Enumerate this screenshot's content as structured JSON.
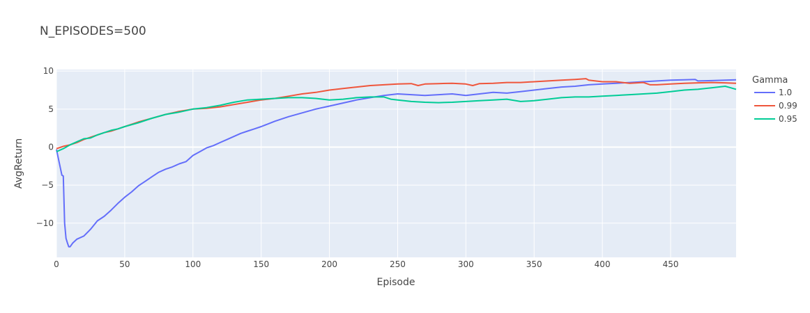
{
  "chart_data": {
    "type": "line",
    "title": "N_EPISODES=500",
    "xlabel": "Episode",
    "ylabel": "AvgReturn",
    "xlim": [
      0,
      498
    ],
    "ylim": [
      -14.5,
      10.2
    ],
    "xticks": [
      0,
      50,
      100,
      150,
      200,
      250,
      300,
      350,
      400,
      450
    ],
    "yticks": [
      -10,
      -5,
      0,
      5,
      10
    ],
    "ytick_labels": [
      "−10",
      "−5",
      "0",
      "5",
      "10"
    ],
    "grid": true,
    "legend": {
      "title": "Gamma",
      "placement": "right"
    },
    "series": [
      {
        "name": "1.0",
        "color": "#636efa",
        "points": [
          [
            0,
            -0.3
          ],
          [
            2,
            -2.0
          ],
          [
            4,
            -3.7
          ],
          [
            5,
            -3.8
          ],
          [
            6,
            -10.0
          ],
          [
            7,
            -12.0
          ],
          [
            8,
            -12.6
          ],
          [
            9,
            -13.1
          ],
          [
            10,
            -13.1
          ],
          [
            12,
            -12.6
          ],
          [
            15,
            -12.1
          ],
          [
            20,
            -11.7
          ],
          [
            25,
            -10.8
          ],
          [
            30,
            -9.7
          ],
          [
            35,
            -9.1
          ],
          [
            40,
            -8.3
          ],
          [
            45,
            -7.4
          ],
          [
            50,
            -6.6
          ],
          [
            55,
            -5.9
          ],
          [
            60,
            -5.1
          ],
          [
            65,
            -4.5
          ],
          [
            70,
            -3.9
          ],
          [
            75,
            -3.3
          ],
          [
            80,
            -2.9
          ],
          [
            85,
            -2.6
          ],
          [
            90,
            -2.2
          ],
          [
            95,
            -1.9
          ],
          [
            100,
            -1.1
          ],
          [
            105,
            -0.6
          ],
          [
            110,
            -0.1
          ],
          [
            115,
            0.2
          ],
          [
            120,
            0.6
          ],
          [
            125,
            1.0
          ],
          [
            130,
            1.4
          ],
          [
            135,
            1.8
          ],
          [
            140,
            2.1
          ],
          [
            145,
            2.4
          ],
          [
            150,
            2.7
          ],
          [
            160,
            3.4
          ],
          [
            170,
            4.0
          ],
          [
            180,
            4.5
          ],
          [
            190,
            5.0
          ],
          [
            200,
            5.4
          ],
          [
            210,
            5.8
          ],
          [
            220,
            6.2
          ],
          [
            230,
            6.5
          ],
          [
            240,
            6.8
          ],
          [
            250,
            7.0
          ],
          [
            260,
            6.9
          ],
          [
            270,
            6.8
          ],
          [
            280,
            6.9
          ],
          [
            290,
            7.0
          ],
          [
            300,
            6.8
          ],
          [
            310,
            7.0
          ],
          [
            320,
            7.2
          ],
          [
            330,
            7.1
          ],
          [
            340,
            7.3
          ],
          [
            350,
            7.5
          ],
          [
            360,
            7.7
          ],
          [
            370,
            7.9
          ],
          [
            380,
            8.0
          ],
          [
            390,
            8.2
          ],
          [
            400,
            8.3
          ],
          [
            410,
            8.4
          ],
          [
            420,
            8.5
          ],
          [
            430,
            8.6
          ],
          [
            440,
            8.7
          ],
          [
            450,
            8.8
          ],
          [
            460,
            8.85
          ],
          [
            468,
            8.9
          ],
          [
            470,
            8.7
          ],
          [
            480,
            8.75
          ],
          [
            490,
            8.8
          ],
          [
            498,
            8.85
          ]
        ]
      },
      {
        "name": "0.99",
        "color": "#ef553b",
        "points": [
          [
            0,
            -0.2
          ],
          [
            5,
            0.1
          ],
          [
            10,
            0.3
          ],
          [
            15,
            0.6
          ],
          [
            20,
            1.0
          ],
          [
            25,
            1.3
          ],
          [
            30,
            1.6
          ],
          [
            35,
            1.9
          ],
          [
            40,
            2.1
          ],
          [
            45,
            2.4
          ],
          [
            50,
            2.7
          ],
          [
            60,
            3.3
          ],
          [
            70,
            3.8
          ],
          [
            80,
            4.3
          ],
          [
            90,
            4.7
          ],
          [
            100,
            5.0
          ],
          [
            110,
            5.1
          ],
          [
            120,
            5.3
          ],
          [
            130,
            5.6
          ],
          [
            140,
            5.9
          ],
          [
            150,
            6.2
          ],
          [
            160,
            6.4
          ],
          [
            170,
            6.7
          ],
          [
            180,
            7.0
          ],
          [
            190,
            7.2
          ],
          [
            200,
            7.5
          ],
          [
            210,
            7.7
          ],
          [
            220,
            7.9
          ],
          [
            230,
            8.1
          ],
          [
            240,
            8.2
          ],
          [
            250,
            8.3
          ],
          [
            260,
            8.35
          ],
          [
            265,
            8.1
          ],
          [
            270,
            8.3
          ],
          [
            280,
            8.35
          ],
          [
            290,
            8.4
          ],
          [
            300,
            8.3
          ],
          [
            305,
            8.1
          ],
          [
            310,
            8.35
          ],
          [
            320,
            8.4
          ],
          [
            330,
            8.5
          ],
          [
            340,
            8.5
          ],
          [
            350,
            8.6
          ],
          [
            360,
            8.7
          ],
          [
            370,
            8.8
          ],
          [
            380,
            8.9
          ],
          [
            388,
            9.0
          ],
          [
            390,
            8.8
          ],
          [
            400,
            8.6
          ],
          [
            410,
            8.6
          ],
          [
            420,
            8.4
          ],
          [
            430,
            8.5
          ],
          [
            435,
            8.2
          ],
          [
            440,
            8.2
          ],
          [
            450,
            8.3
          ],
          [
            460,
            8.4
          ],
          [
            470,
            8.45
          ],
          [
            480,
            8.5
          ],
          [
            490,
            8.45
          ],
          [
            498,
            8.4
          ]
        ]
      },
      {
        "name": "0.95",
        "color": "#00cc96",
        "points": [
          [
            0,
            -0.6
          ],
          [
            5,
            -0.2
          ],
          [
            10,
            0.3
          ],
          [
            15,
            0.7
          ],
          [
            20,
            1.1
          ],
          [
            25,
            1.2
          ],
          [
            30,
            1.6
          ],
          [
            35,
            1.9
          ],
          [
            40,
            2.2
          ],
          [
            45,
            2.4
          ],
          [
            50,
            2.7
          ],
          [
            60,
            3.2
          ],
          [
            70,
            3.8
          ],
          [
            80,
            4.3
          ],
          [
            90,
            4.6
          ],
          [
            100,
            5.0
          ],
          [
            110,
            5.2
          ],
          [
            120,
            5.5
          ],
          [
            130,
            5.9
          ],
          [
            140,
            6.2
          ],
          [
            150,
            6.3
          ],
          [
            160,
            6.4
          ],
          [
            170,
            6.5
          ],
          [
            180,
            6.5
          ],
          [
            190,
            6.4
          ],
          [
            200,
            6.2
          ],
          [
            210,
            6.3
          ],
          [
            220,
            6.5
          ],
          [
            230,
            6.6
          ],
          [
            240,
            6.6
          ],
          [
            245,
            6.3
          ],
          [
            250,
            6.2
          ],
          [
            260,
            6.0
          ],
          [
            270,
            5.9
          ],
          [
            280,
            5.85
          ],
          [
            290,
            5.9
          ],
          [
            300,
            6.0
          ],
          [
            310,
            6.1
          ],
          [
            320,
            6.2
          ],
          [
            330,
            6.3
          ],
          [
            340,
            6.0
          ],
          [
            350,
            6.1
          ],
          [
            360,
            6.3
          ],
          [
            370,
            6.5
          ],
          [
            380,
            6.6
          ],
          [
            390,
            6.6
          ],
          [
            400,
            6.7
          ],
          [
            410,
            6.8
          ],
          [
            420,
            6.9
          ],
          [
            430,
            7.0
          ],
          [
            440,
            7.1
          ],
          [
            450,
            7.3
          ],
          [
            460,
            7.5
          ],
          [
            470,
            7.6
          ],
          [
            480,
            7.8
          ],
          [
            490,
            8.0
          ],
          [
            494,
            7.8
          ],
          [
            498,
            7.6
          ]
        ]
      }
    ]
  }
}
